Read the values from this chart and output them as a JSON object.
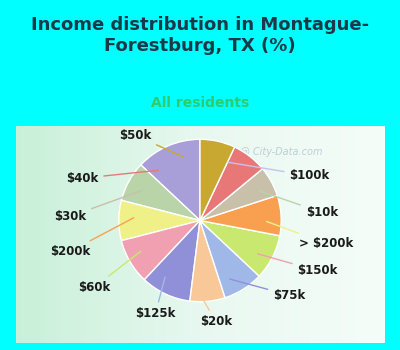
{
  "title": "Income distribution in Montague-\nForestburg, TX (%)",
  "subtitle": "All residents",
  "title_color": "#1a3a4a",
  "subtitle_color": "#2ecc71",
  "background_top": "#00ffff",
  "chart_bg_start": "#e8f5e9",
  "chart_bg_end": "#ffffff",
  "watermark": "City-Data.com",
  "labels": [
    "$100k",
    "$10k",
    "> $200k",
    "$150k",
    "$75k",
    "$20k",
    "$125k",
    "$60k",
    "$200k",
    "$30k",
    "$40k",
    "$50k"
  ],
  "values": [
    13,
    8,
    8,
    9,
    10,
    7,
    8,
    9,
    8,
    6,
    7,
    7
  ],
  "colors": [
    "#a89fd8",
    "#b8d4a8",
    "#f0f088",
    "#f0a0b0",
    "#9090d8",
    "#f8c898",
    "#a0b8e8",
    "#c8e870",
    "#f8a050",
    "#c8c0a8",
    "#e87878",
    "#c8a830"
  ],
  "wedge_edge_color": "#ffffff",
  "wedge_linewidth": 1.0,
  "label_fontsize": 8.5,
  "label_color": "#1a1a1a",
  "start_angle": 90
}
